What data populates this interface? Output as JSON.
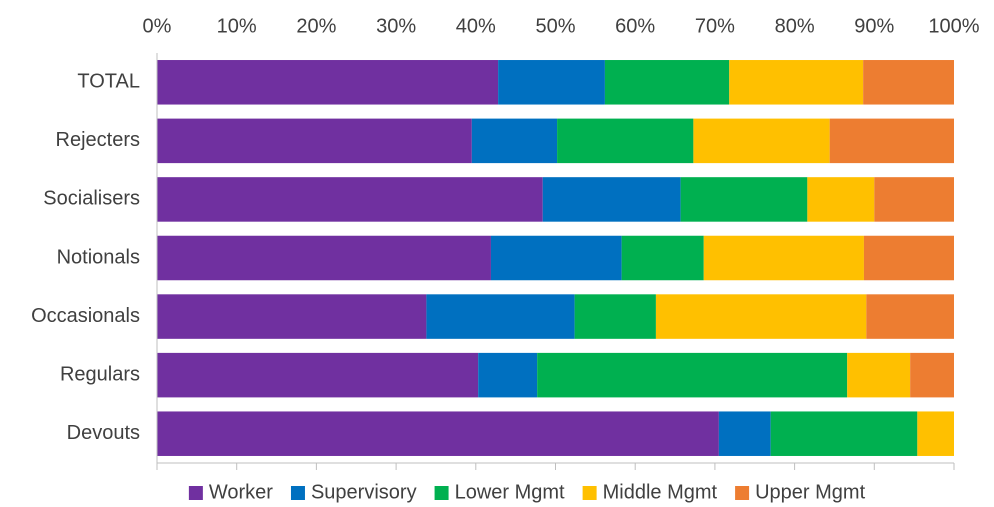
{
  "chart_data": {
    "type": "stacked-barh",
    "categories": [
      "TOTAL",
      "Rejecters",
      "Socialisers",
      "Notionals",
      "Occasionals",
      "Regulars",
      "Devouts"
    ],
    "series": [
      {
        "name": "Worker",
        "color": "#7030a0",
        "values": [
          42.8,
          39.5,
          48.4,
          41.9,
          33.8,
          40.3,
          70.5
        ]
      },
      {
        "name": "Supervisory",
        "color": "#0070c0",
        "values": [
          13.4,
          10.7,
          17.3,
          16.4,
          18.6,
          7.4,
          6.5
        ]
      },
      {
        "name": "Lower Mgmt",
        "color": "#00b050",
        "values": [
          15.6,
          17.1,
          15.9,
          10.3,
          10.2,
          38.9,
          18.4
        ]
      },
      {
        "name": "Middle Mgmt",
        "color": "#ffc000",
        "values": [
          16.8,
          17.1,
          8.4,
          20.1,
          26.4,
          7.9,
          4.6
        ]
      },
      {
        "name": "Upper Mgmt",
        "color": "#ed7d31",
        "values": [
          11.4,
          15.6,
          10.0,
          11.3,
          11.0,
          5.5,
          0
        ]
      }
    ],
    "xlim": [
      0,
      100
    ],
    "xticks": [
      {
        "value": 0,
        "label": "0%"
      },
      {
        "value": 10,
        "label": "10%"
      },
      {
        "value": 20,
        "label": "20%"
      },
      {
        "value": 30,
        "label": "30%"
      },
      {
        "value": 40,
        "label": "40%"
      },
      {
        "value": 50,
        "label": "50%"
      },
      {
        "value": 60,
        "label": "60%"
      },
      {
        "value": 70,
        "label": "70%"
      },
      {
        "value": 80,
        "label": "80%"
      },
      {
        "value": 90,
        "label": "90%"
      },
      {
        "value": 100,
        "label": "100%"
      }
    ],
    "legend": "bottom"
  }
}
